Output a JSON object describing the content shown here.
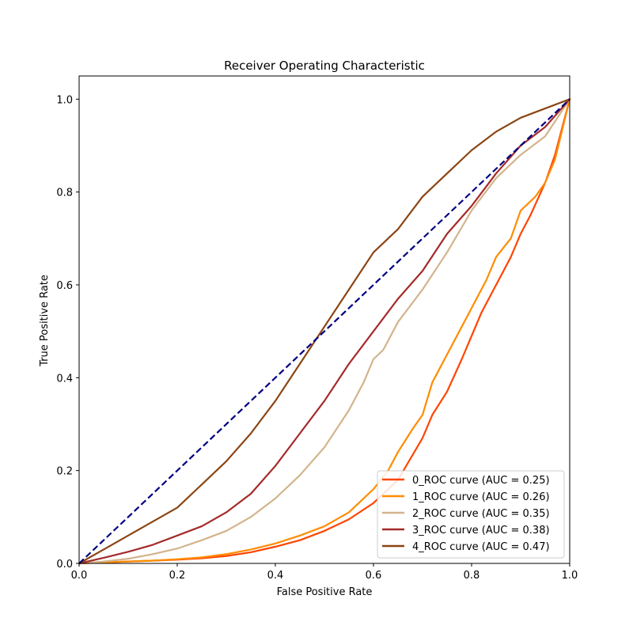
{
  "chart_data": {
    "type": "line",
    "title": "Receiver Operating Characteristic",
    "xlabel": "False Positive Rate",
    "ylabel": "True Positive Rate",
    "xlim": [
      0.0,
      1.0
    ],
    "ylim": [
      0.0,
      1.05
    ],
    "xticks": [
      "0.0",
      "0.2",
      "0.4",
      "0.6",
      "0.8",
      "1.0"
    ],
    "yticks": [
      "0.0",
      "0.2",
      "0.4",
      "0.6",
      "0.8",
      "1.0"
    ],
    "grid": false,
    "legend_position": "lower-right",
    "diagonal": {
      "color": "#000080",
      "style": "dashed",
      "x": [
        0,
        1
      ],
      "y": [
        0,
        1
      ]
    },
    "series": [
      {
        "name": "0_ROC curve (AUC = 0.25)",
        "color": "#FF4500",
        "x": [
          0,
          0.05,
          0.1,
          0.15,
          0.2,
          0.25,
          0.3,
          0.35,
          0.4,
          0.45,
          0.5,
          0.55,
          0.6,
          0.65,
          0.7,
          0.72,
          0.75,
          0.78,
          0.8,
          0.82,
          0.85,
          0.88,
          0.9,
          0.92,
          0.95,
          0.97,
          1.0
        ],
        "y": [
          0,
          0.002,
          0.004,
          0.006,
          0.008,
          0.011,
          0.016,
          0.024,
          0.036,
          0.05,
          0.07,
          0.095,
          0.13,
          0.18,
          0.27,
          0.32,
          0.37,
          0.44,
          0.49,
          0.54,
          0.6,
          0.66,
          0.71,
          0.75,
          0.82,
          0.88,
          1.0
        ]
      },
      {
        "name": "1_ROC curve (AUC = 0.26)",
        "color": "#FF8C00",
        "x": [
          0,
          0.05,
          0.1,
          0.15,
          0.2,
          0.25,
          0.3,
          0.35,
          0.4,
          0.45,
          0.5,
          0.55,
          0.6,
          0.63,
          0.65,
          0.68,
          0.7,
          0.72,
          0.75,
          0.78,
          0.8,
          0.83,
          0.85,
          0.88,
          0.9,
          0.93,
          0.95,
          0.97,
          1.0
        ],
        "y": [
          0,
          0.002,
          0.004,
          0.006,
          0.009,
          0.013,
          0.02,
          0.03,
          0.043,
          0.06,
          0.08,
          0.11,
          0.16,
          0.2,
          0.24,
          0.29,
          0.32,
          0.39,
          0.45,
          0.51,
          0.55,
          0.61,
          0.66,
          0.7,
          0.76,
          0.79,
          0.82,
          0.87,
          1.0
        ]
      },
      {
        "name": "2_ROC curve (AUC = 0.35)",
        "color": "#D2B48C",
        "x": [
          0,
          0.05,
          0.1,
          0.15,
          0.2,
          0.25,
          0.3,
          0.35,
          0.4,
          0.45,
          0.5,
          0.55,
          0.58,
          0.6,
          0.62,
          0.65,
          0.7,
          0.75,
          0.8,
          0.85,
          0.9,
          0.95,
          1.0
        ],
        "y": [
          0,
          0.004,
          0.01,
          0.02,
          0.032,
          0.05,
          0.07,
          0.1,
          0.14,
          0.19,
          0.25,
          0.33,
          0.39,
          0.44,
          0.46,
          0.52,
          0.59,
          0.67,
          0.76,
          0.83,
          0.88,
          0.92,
          1.0
        ]
      },
      {
        "name": "3_ROC curve (AUC = 0.38)",
        "color": "#A52A2A",
        "x": [
          0,
          0.05,
          0.1,
          0.15,
          0.2,
          0.25,
          0.3,
          0.35,
          0.4,
          0.45,
          0.5,
          0.55,
          0.6,
          0.65,
          0.7,
          0.75,
          0.8,
          0.85,
          0.9,
          0.95,
          1.0
        ],
        "y": [
          0,
          0.012,
          0.025,
          0.04,
          0.06,
          0.08,
          0.11,
          0.15,
          0.21,
          0.28,
          0.35,
          0.43,
          0.5,
          0.57,
          0.63,
          0.71,
          0.77,
          0.84,
          0.9,
          0.94,
          1.0
        ]
      },
      {
        "name": "4_ROC curve (AUC = 0.47)",
        "color": "#8B4513",
        "x": [
          0,
          0.05,
          0.1,
          0.15,
          0.2,
          0.25,
          0.3,
          0.35,
          0.4,
          0.45,
          0.5,
          0.55,
          0.6,
          0.65,
          0.7,
          0.75,
          0.8,
          0.85,
          0.9,
          0.95,
          1.0
        ],
        "y": [
          0,
          0.03,
          0.06,
          0.09,
          0.12,
          0.17,
          0.22,
          0.28,
          0.35,
          0.43,
          0.51,
          0.59,
          0.67,
          0.72,
          0.79,
          0.84,
          0.89,
          0.93,
          0.96,
          0.98,
          1.0
        ]
      }
    ]
  }
}
